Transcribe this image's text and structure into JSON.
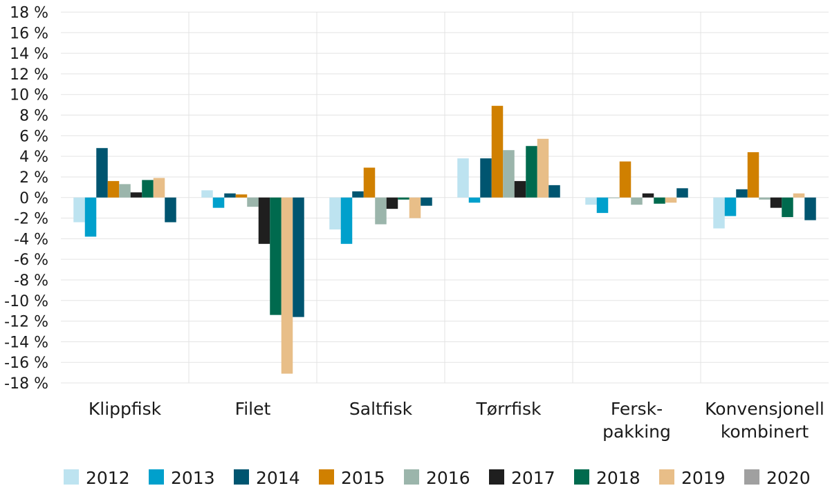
{
  "chart_data": {
    "type": "bar",
    "title": "",
    "xlabel": "",
    "ylabel": "",
    "ylim": [
      -18,
      18
    ],
    "ytick_step": 2,
    "ytick_suffix": " %",
    "grid": true,
    "legend_position": "bottom",
    "categories": [
      [
        "Klippfisk"
      ],
      [
        "Filet"
      ],
      [
        "Saltfisk"
      ],
      [
        "Tørrfisk"
      ],
      [
        "Fersk-",
        "pakking"
      ],
      [
        "Konvensjonell",
        "kombinert"
      ]
    ],
    "series": [
      {
        "name": "2012",
        "color": "#bde3f0",
        "legend_color": "#bde3f0",
        "values": [
          -2.4,
          0.7,
          -3.1,
          3.8,
          -0.7,
          -3.0
        ]
      },
      {
        "name": "2013",
        "color": "#00a0cc",
        "legend_color": "#00a0cc",
        "values": [
          -3.8,
          -1.0,
          -4.5,
          -0.5,
          -1.5,
          -1.8
        ]
      },
      {
        "name": "2014",
        "color": "#005570",
        "legend_color": "#005570",
        "values": [
          4.8,
          0.4,
          0.6,
          3.8,
          0.0,
          0.8
        ]
      },
      {
        "name": "2015",
        "color": "#d08000",
        "legend_color": "#d08000",
        "values": [
          1.6,
          0.3,
          2.9,
          8.9,
          3.5,
          4.4
        ]
      },
      {
        "name": "2016",
        "color": "#9bb5ab",
        "legend_color": "#9bb5ab",
        "values": [
          1.3,
          -0.9,
          -2.6,
          4.6,
          -0.7,
          -0.2
        ]
      },
      {
        "name": "2017",
        "color": "#1f1f1f",
        "legend_color": "#1f1f1f",
        "values": [
          0.5,
          -4.5,
          -1.1,
          1.6,
          0.4,
          -1.0
        ]
      },
      {
        "name": "2018",
        "color": "#006a4e",
        "legend_color": "#006a4e",
        "values": [
          1.7,
          -11.4,
          -0.2,
          5.0,
          -0.6,
          -1.9
        ]
      },
      {
        "name": "2019",
        "color": "#e8be88",
        "legend_color": "#e8be88",
        "values": [
          1.9,
          -17.1,
          -2.0,
          5.7,
          -0.5,
          0.4
        ]
      },
      {
        "name": "2020",
        "color": "#005570",
        "legend_color": "#a0a0a0",
        "values": [
          -2.4,
          -11.6,
          -0.8,
          1.2,
          0.9,
          -2.2
        ]
      }
    ]
  }
}
